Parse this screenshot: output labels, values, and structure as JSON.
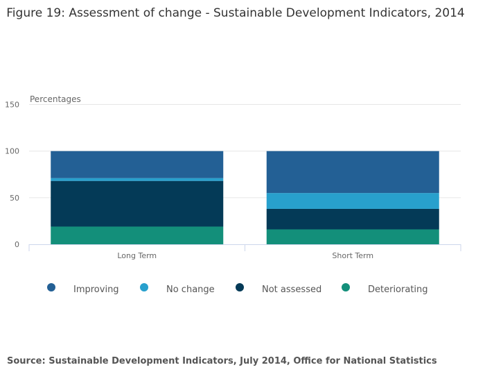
{
  "chart_data": {
    "type": "bar",
    "stacked": true,
    "title": "Figure 19: Assessment of change - Sustainable Development Indicators, 2014",
    "ylabel": "Percentages",
    "xlabel": "",
    "ylim": [
      0,
      150
    ],
    "yticks": [
      0,
      50,
      100,
      150
    ],
    "grid": true,
    "legend_placement": "bottom",
    "categories": [
      "Long Term",
      "Short Term"
    ],
    "series": [
      {
        "name": "Deteriorating",
        "color": "#138f7a",
        "values": [
          19,
          16
        ]
      },
      {
        "name": "Not assessed",
        "color": "#043a57",
        "values": [
          49,
          22
        ]
      },
      {
        "name": "No change",
        "color": "#28a0cd",
        "values": [
          3,
          17
        ]
      },
      {
        "name": "Improving",
        "color": "#236095",
        "values": [
          29,
          45
        ]
      }
    ],
    "legend_order": [
      "Improving",
      "No change",
      "Not assessed",
      "Deteriorating"
    ]
  },
  "source": "Source: Sustainable Development Indicators, July 2014, Office for National Statistics"
}
